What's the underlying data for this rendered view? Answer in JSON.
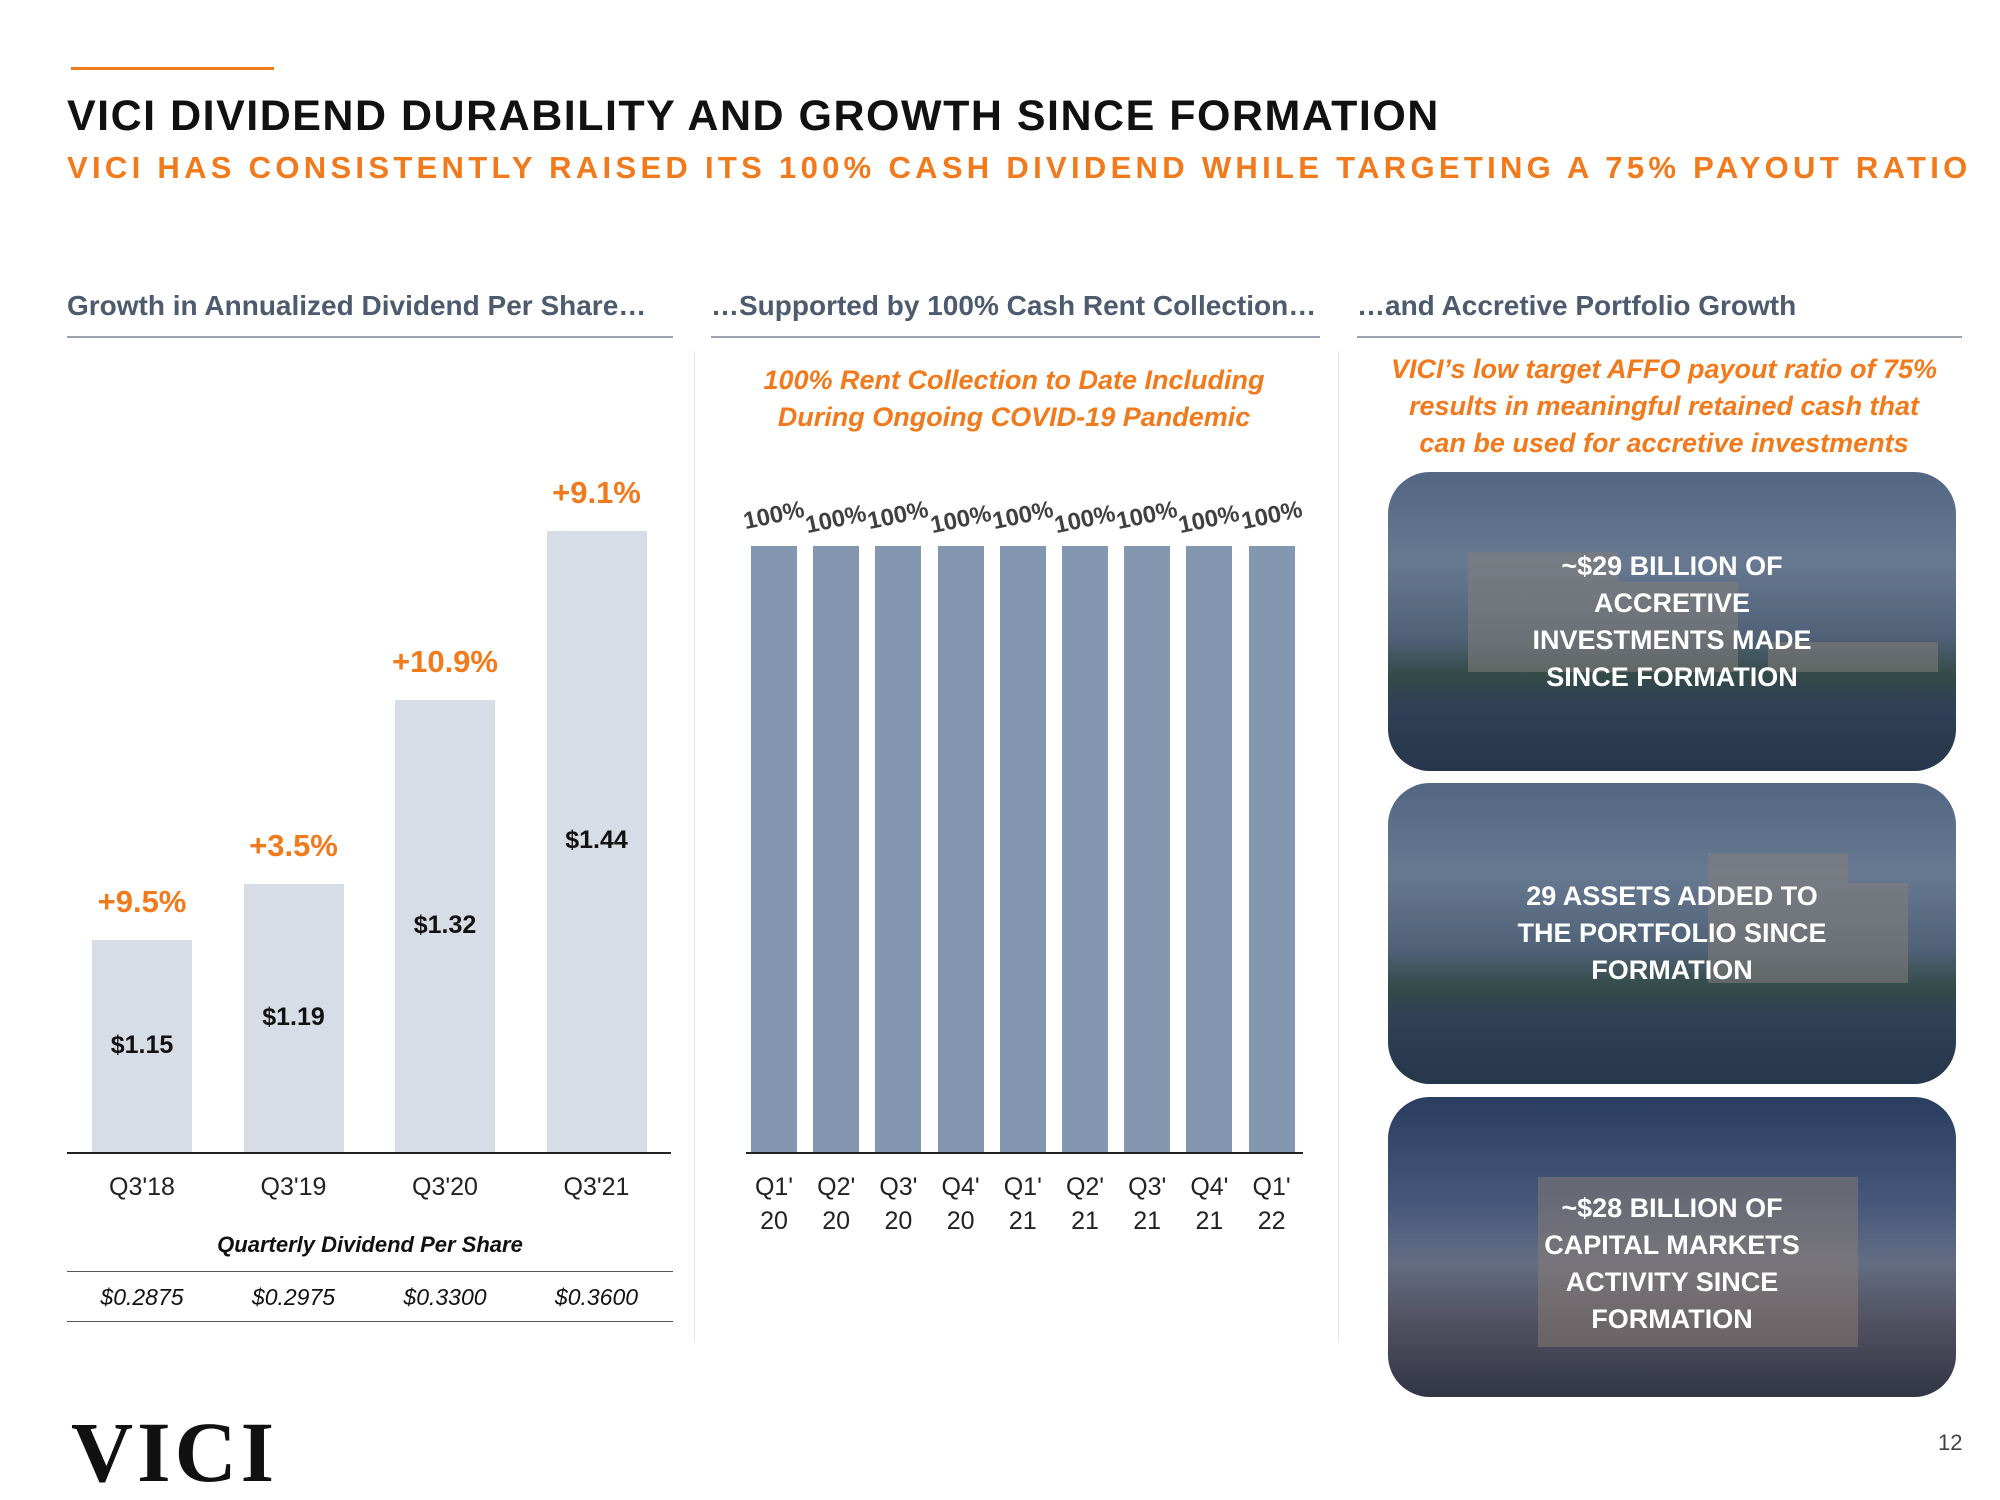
{
  "header": {
    "title": "VICI DIVIDEND DURABILITY AND GROWTH SINCE FORMATION",
    "subtitle": "VICI HAS CONSISTENTLY RAISED ITS 100% CASH DIVIDEND WHILE TARGETING A 75% PAYOUT RATIO"
  },
  "columns": [
    "Growth in Annualized Dividend Per Share…",
    "…Supported by 100% Cash Rent Collection…",
    "…and Accretive Portfolio Growth"
  ],
  "chart_data": [
    {
      "type": "bar",
      "categories": [
        "Q3'18",
        "Q3'19",
        "Q3'20",
        "Q3'21"
      ],
      "values": [
        1.15,
        1.19,
        1.32,
        1.44
      ],
      "value_labels": [
        "$1.15",
        "$1.19",
        "$1.32",
        "$1.44"
      ],
      "annotations": [
        "+9.5%",
        "+3.5%",
        "+10.9%",
        "+9.1%"
      ],
      "color": "#d6dde7",
      "ylim": [
        1.0,
        1.5
      ]
    },
    {
      "type": "bar",
      "annotation": "100% Rent Collection to Date Including During Ongoing COVID-19 Pandemic",
      "categories": [
        "Q1' 20",
        "Q2' 20",
        "Q3' 20",
        "Q4' 20",
        "Q1' 21",
        "Q2' 21",
        "Q3' 21",
        "Q4' 21",
        "Q1' 22"
      ],
      "values": [
        100,
        100,
        100,
        100,
        100,
        100,
        100,
        100,
        100
      ],
      "value_labels": [
        "100%",
        "100%",
        "100%",
        "100%",
        "100%",
        "100%",
        "100%",
        "100%",
        "100%"
      ],
      "color": "#8497b0",
      "ylim": [
        0,
        100
      ]
    }
  ],
  "dividend_table": {
    "title": "Quarterly Dividend Per Share",
    "values": [
      "$0.2875",
      "$0.2975",
      "$0.3300",
      "$0.3600"
    ]
  },
  "portfolio": {
    "note": "VICI’s low target AFFO payout ratio of 75% results in meaningful retained cash that can be used for accretive investments",
    "cards": [
      "~$29 BILLION OF ACCRETIVE INVESTMENTS MADE SINCE FORMATION",
      "29 ASSETS ADDED TO THE PORTFOLIO SINCE FORMATION",
      "~$28 BILLION OF CAPITAL MARKETS ACTIVITY SINCE FORMATION"
    ]
  },
  "footer": {
    "logo": "VICI",
    "page": "12"
  }
}
